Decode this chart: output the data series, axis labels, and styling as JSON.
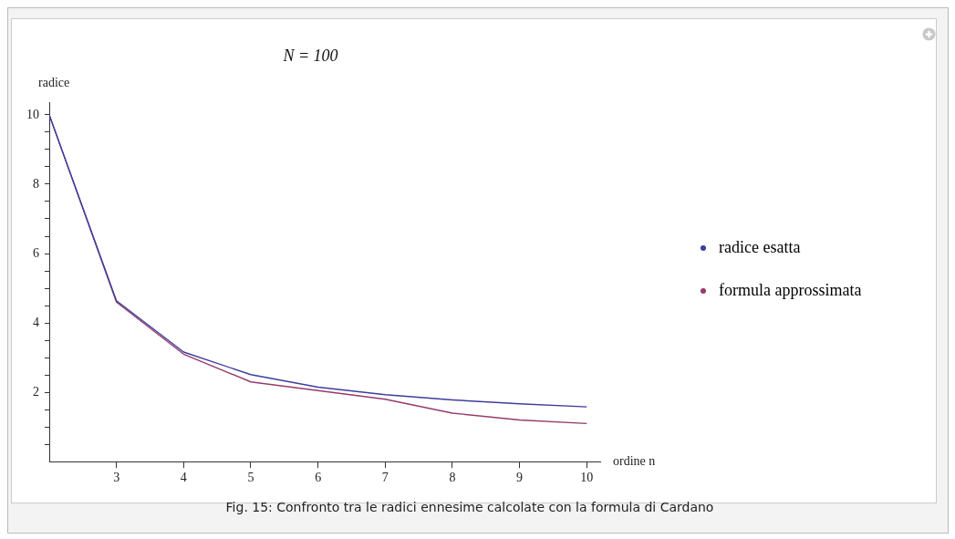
{
  "chart_data": {
    "type": "line",
    "title": "N = 100",
    "xlabel": "ordine n",
    "ylabel": "radice",
    "x": [
      2,
      3,
      4,
      5,
      6,
      7,
      8,
      9,
      10
    ],
    "series": [
      {
        "name": "radice esatta",
        "color": "#3d3d9e",
        "values": [
          10,
          4.64,
          3.16,
          2.51,
          2.15,
          1.93,
          1.78,
          1.67,
          1.58
        ]
      },
      {
        "name": "formula approssimata",
        "color": "#963a6c",
        "values": [
          10,
          4.6,
          3.1,
          2.3,
          2.05,
          1.8,
          1.4,
          1.2,
          1.1
        ]
      }
    ],
    "xlim": [
      2,
      10.2
    ],
    "xticks": [
      3,
      4,
      5,
      6,
      7,
      8,
      9,
      10
    ],
    "ylim": [
      0,
      10.35
    ],
    "yticks": [
      {
        "value": 0.5,
        "label": null
      },
      {
        "value": 1,
        "label": null
      },
      {
        "value": 1.5,
        "label": null
      },
      2,
      {
        "value": 2.5,
        "label": null
      },
      {
        "value": 3,
        "label": null
      },
      {
        "value": 3.5,
        "label": null
      },
      4,
      {
        "value": 4.5,
        "label": null
      },
      {
        "value": 5,
        "label": null
      },
      {
        "value": 5.5,
        "label": null
      },
      6,
      {
        "value": 6.5,
        "label": null
      },
      {
        "value": 7,
        "label": null
      },
      {
        "value": 7.5,
        "label": null
      },
      8,
      {
        "value": 8.5,
        "label": null
      },
      {
        "value": 9,
        "label": null
      },
      {
        "value": 9.5,
        "label": null
      },
      10
    ],
    "legend": "right",
    "marker": "none",
    "line_style": "solid",
    "annotations": [
      "Fig. 15: Confronto tra le radici ennesime calcolate con la formula di Cardano"
    ]
  }
}
